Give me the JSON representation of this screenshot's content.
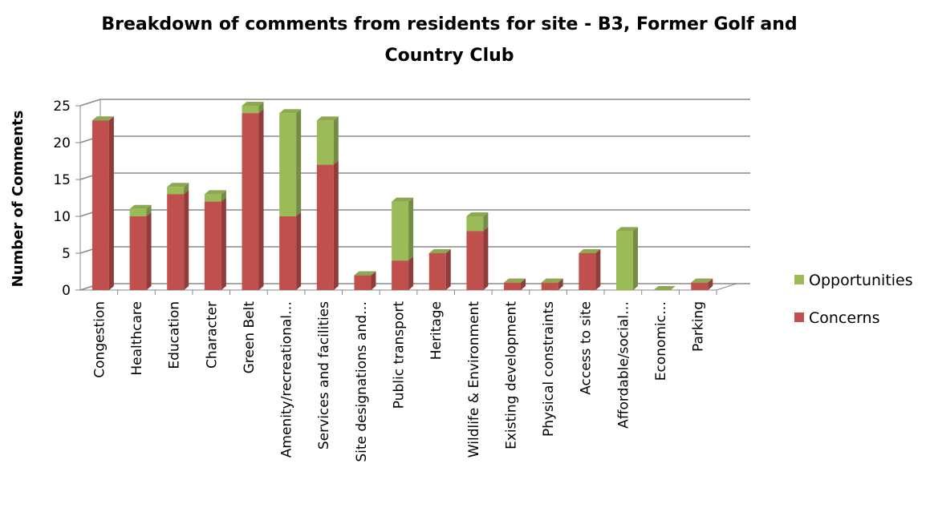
{
  "chart_data": {
    "type": "bar",
    "stacked": true,
    "title": "Breakdown of comments from residents for site - B3, Former Golf and Country Club",
    "title_lines": [
      "Breakdown of comments from residents for site - B3, Former Golf and",
      "Country Club"
    ],
    "y_label": "Number of Comments",
    "categories": [
      "Congestion",
      "Healthcare",
      "Education",
      "Character",
      "Green Belt",
      "Amenity/recreational…",
      "Services and facilities",
      "Site designations and…",
      "Public transport",
      "Heritage",
      "Wildlife & Environment",
      "Existing development",
      "Physical constraints",
      "Access to site",
      "Affordable/social…",
      "Economic…",
      "Parking"
    ],
    "series": [
      {
        "name": "Concerns",
        "color": "#c0504d",
        "values": [
          23,
          10,
          13,
          12,
          24,
          10,
          17,
          2,
          4,
          5,
          8,
          1,
          1,
          5,
          0,
          0,
          1
        ]
      },
      {
        "name": "Opportunities",
        "color": "#9bbb59",
        "values": [
          0,
          1,
          1,
          1,
          1,
          14,
          6,
          0,
          8,
          0,
          2,
          0,
          0,
          0,
          8,
          0,
          0
        ]
      }
    ],
    "ylim": [
      0,
      25
    ],
    "yticks": [
      0,
      5,
      10,
      15,
      20,
      25
    ],
    "grid": true,
    "legend": "right"
  }
}
